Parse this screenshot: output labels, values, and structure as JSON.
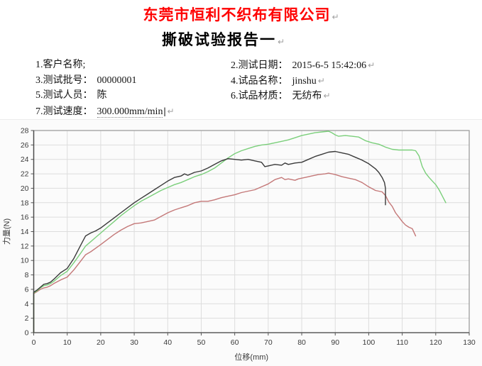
{
  "header": {
    "company_title": "东莞市恒利不织布有限公司",
    "report_title": "撕破试验报告一",
    "title_color": "#ff0000",
    "paragraph_mark": "↵"
  },
  "fields": {
    "rows": [
      {
        "left_label": "1.客户名称;",
        "left_value": "",
        "right_label": "2.测试日期：",
        "right_value": "2015-6-5 15:42:06",
        "right_mark": "↵"
      },
      {
        "left_label": "3.测试批号：",
        "left_value": "00000001",
        "right_label": "4.试品名称：",
        "right_value": "jinshu",
        "right_mark": "↵"
      },
      {
        "left_label": "5.测试人员：",
        "left_value": "陈",
        "right_label": "6.试品材质：",
        "right_value": "无纺布",
        "right_mark": "↵"
      },
      {
        "left_label": "7.测试速度：",
        "left_value": "300.000mm/min",
        "cursor": "|",
        "left_mark": "↵"
      }
    ]
  },
  "chart_data": {
    "type": "line",
    "title": "",
    "xlabel": "位移(mm)",
    "ylabel": "力量(N)",
    "xlim": [
      0,
      130
    ],
    "ylim": [
      0,
      28
    ],
    "xtick_step": 10,
    "ytick_step": 2,
    "grid": true,
    "legend": "none",
    "grid_color": "#dddddd",
    "border_color": "#979797",
    "axis_color": "#4a4a4a",
    "tick_label_color": "#3a3a3a",
    "series": [
      {
        "name": "specimen-red",
        "color": "#c47878",
        "points": [
          [
            0,
            0
          ],
          [
            0,
            5.4
          ],
          [
            1,
            5.7
          ],
          [
            2,
            6.0
          ],
          [
            3,
            6.2
          ],
          [
            4,
            6.3
          ],
          [
            5,
            6.5
          ],
          [
            6,
            6.8
          ],
          [
            8,
            7.3
          ],
          [
            10,
            7.7
          ],
          [
            12,
            8.7
          ],
          [
            14,
            9.9
          ],
          [
            15.5,
            10.8
          ],
          [
            17,
            11.2
          ],
          [
            18.5,
            11.7
          ],
          [
            20,
            12.2
          ],
          [
            22,
            12.9
          ],
          [
            24,
            13.6
          ],
          [
            26,
            14.2
          ],
          [
            28,
            14.7
          ],
          [
            30,
            15.1
          ],
          [
            32,
            15.2
          ],
          [
            34,
            15.4
          ],
          [
            36,
            15.6
          ],
          [
            38,
            16.1
          ],
          [
            40,
            16.6
          ],
          [
            42,
            17.0
          ],
          [
            44,
            17.3
          ],
          [
            46,
            17.6
          ],
          [
            48,
            18.0
          ],
          [
            50,
            18.2
          ],
          [
            52,
            18.2
          ],
          [
            54,
            18.4
          ],
          [
            56,
            18.7
          ],
          [
            58,
            18.9
          ],
          [
            60,
            19.1
          ],
          [
            62,
            19.4
          ],
          [
            64,
            19.6
          ],
          [
            66,
            19.8
          ],
          [
            68,
            20.2
          ],
          [
            70,
            20.6
          ],
          [
            72,
            21.2
          ],
          [
            74,
            21.5
          ],
          [
            75,
            21.2
          ],
          [
            76,
            21.3
          ],
          [
            78,
            21.1
          ],
          [
            79,
            21.3
          ],
          [
            81,
            21.5
          ],
          [
            83,
            21.7
          ],
          [
            85,
            21.9
          ],
          [
            87,
            22.0
          ],
          [
            88,
            22.1
          ],
          [
            90,
            21.9
          ],
          [
            92,
            21.6
          ],
          [
            94,
            21.4
          ],
          [
            96,
            21.2
          ],
          [
            98,
            20.8
          ],
          [
            100,
            20.2
          ],
          [
            102,
            19.7
          ],
          [
            104,
            19.5
          ],
          [
            105,
            19.0
          ],
          [
            106,
            18.1
          ],
          [
            107,
            17.5
          ],
          [
            108,
            16.6
          ],
          [
            109,
            16.0
          ],
          [
            110,
            15.4
          ],
          [
            111,
            14.9
          ],
          [
            112,
            14.6
          ],
          [
            113,
            14.4
          ],
          [
            114,
            13.4
          ]
        ]
      },
      {
        "name": "specimen-green",
        "color": "#7bcf7b",
        "points": [
          [
            0,
            0
          ],
          [
            0,
            5.5
          ],
          [
            1,
            5.8
          ],
          [
            2,
            6.2
          ],
          [
            3,
            6.5
          ],
          [
            4,
            6.6
          ],
          [
            5,
            6.8
          ],
          [
            6,
            7.1
          ],
          [
            8,
            7.9
          ],
          [
            10,
            8.5
          ],
          [
            12,
            9.7
          ],
          [
            14,
            11.0
          ],
          [
            15.5,
            12.0
          ],
          [
            17,
            12.6
          ],
          [
            18.5,
            13.2
          ],
          [
            20,
            13.8
          ],
          [
            22,
            14.6
          ],
          [
            24,
            15.4
          ],
          [
            26,
            16.2
          ],
          [
            28,
            16.9
          ],
          [
            30,
            17.6
          ],
          [
            32,
            18.2
          ],
          [
            34,
            18.7
          ],
          [
            36,
            19.2
          ],
          [
            38,
            19.7
          ],
          [
            40,
            20.1
          ],
          [
            42,
            20.5
          ],
          [
            44,
            20.8
          ],
          [
            46,
            21.2
          ],
          [
            48,
            21.6
          ],
          [
            50,
            21.9
          ],
          [
            52,
            22.3
          ],
          [
            54,
            22.8
          ],
          [
            56,
            23.5
          ],
          [
            58,
            24.2
          ],
          [
            60,
            24.8
          ],
          [
            62,
            25.2
          ],
          [
            64,
            25.5
          ],
          [
            66,
            25.8
          ],
          [
            68,
            26.0
          ],
          [
            70,
            26.1
          ],
          [
            72,
            26.3
          ],
          [
            74,
            26.5
          ],
          [
            76,
            26.7
          ],
          [
            78,
            27.0
          ],
          [
            80,
            27.3
          ],
          [
            82,
            27.5
          ],
          [
            84,
            27.7
          ],
          [
            86,
            27.8
          ],
          [
            88,
            27.9
          ],
          [
            89,
            27.7
          ],
          [
            90,
            27.4
          ],
          [
            91,
            27.2
          ],
          [
            93,
            27.3
          ],
          [
            95,
            27.2
          ],
          [
            97,
            27.1
          ],
          [
            99,
            26.6
          ],
          [
            101,
            26.3
          ],
          [
            103,
            26.1
          ],
          [
            105,
            25.7
          ],
          [
            107,
            25.4
          ],
          [
            109,
            25.3
          ],
          [
            111,
            25.3
          ],
          [
            113,
            25.3
          ],
          [
            114,
            25.2
          ],
          [
            115,
            24.5
          ],
          [
            116,
            23.0
          ],
          [
            117,
            22.1
          ],
          [
            118,
            21.5
          ],
          [
            119,
            21.0
          ],
          [
            120,
            20.5
          ],
          [
            121,
            19.8
          ],
          [
            122,
            18.9
          ],
          [
            123,
            18.0
          ]
        ]
      },
      {
        "name": "specimen-black",
        "color": "#3a3a3a",
        "points": [
          [
            0,
            0
          ],
          [
            0,
            5.6
          ],
          [
            1,
            5.9
          ],
          [
            2,
            6.3
          ],
          [
            3,
            6.7
          ],
          [
            4,
            6.8
          ],
          [
            5,
            7.0
          ],
          [
            6,
            7.4
          ],
          [
            8,
            8.3
          ],
          [
            10,
            8.9
          ],
          [
            12,
            10.3
          ],
          [
            14,
            12.1
          ],
          [
            15.5,
            13.4
          ],
          [
            17,
            13.8
          ],
          [
            18.5,
            14.1
          ],
          [
            20,
            14.5
          ],
          [
            22,
            15.2
          ],
          [
            24,
            15.9
          ],
          [
            26,
            16.6
          ],
          [
            28,
            17.3
          ],
          [
            30,
            18.0
          ],
          [
            32,
            18.6
          ],
          [
            34,
            19.2
          ],
          [
            36,
            19.8
          ],
          [
            38,
            20.4
          ],
          [
            40,
            21.0
          ],
          [
            42,
            21.5
          ],
          [
            44,
            21.7
          ],
          [
            45,
            22.0
          ],
          [
            46,
            21.8
          ],
          [
            48,
            22.2
          ],
          [
            50,
            22.4
          ],
          [
            52,
            22.8
          ],
          [
            54,
            23.3
          ],
          [
            56,
            23.8
          ],
          [
            58,
            24.1
          ],
          [
            60,
            24.0
          ],
          [
            62,
            23.9
          ],
          [
            64,
            24.0
          ],
          [
            66,
            23.8
          ],
          [
            68,
            23.6
          ],
          [
            69,
            23.0
          ],
          [
            70,
            23.1
          ],
          [
            72,
            23.3
          ],
          [
            74,
            23.2
          ],
          [
            75,
            23.5
          ],
          [
            76,
            23.3
          ],
          [
            78,
            23.5
          ],
          [
            80,
            23.6
          ],
          [
            82,
            24.0
          ],
          [
            84,
            24.4
          ],
          [
            86,
            24.7
          ],
          [
            88,
            25.0
          ],
          [
            90,
            25.1
          ],
          [
            92,
            24.9
          ],
          [
            94,
            24.7
          ],
          [
            96,
            24.3
          ],
          [
            98,
            23.9
          ],
          [
            100,
            23.4
          ],
          [
            102,
            22.7
          ],
          [
            103,
            22.2
          ],
          [
            104,
            21.5
          ],
          [
            104.7,
            20.8
          ],
          [
            105,
            20.0
          ],
          [
            105,
            17.7
          ]
        ]
      }
    ]
  }
}
